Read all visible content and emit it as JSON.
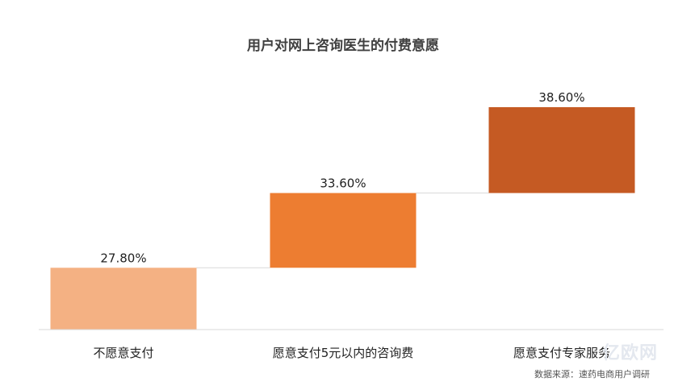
{
  "chart_data": {
    "type": "bar",
    "title": "用户对网上咨询医生的付费意愿",
    "categories": [
      "不愿意支付",
      "愿意支付5元以内的咨询费",
      "愿意支付专家服务"
    ],
    "values": [
      27.8,
      33.6,
      38.6
    ],
    "value_labels": [
      "27.80%",
      "33.60%",
      "38.60%"
    ],
    "colors": [
      "#f4b183",
      "#ed7d31",
      "#c55a23"
    ],
    "xlabel": "",
    "ylabel": "",
    "ylim": [
      0,
      45
    ],
    "grid": false,
    "legend": "none",
    "source_note": "数据来源：速药电商用户调研",
    "watermark": "亿欧网"
  }
}
